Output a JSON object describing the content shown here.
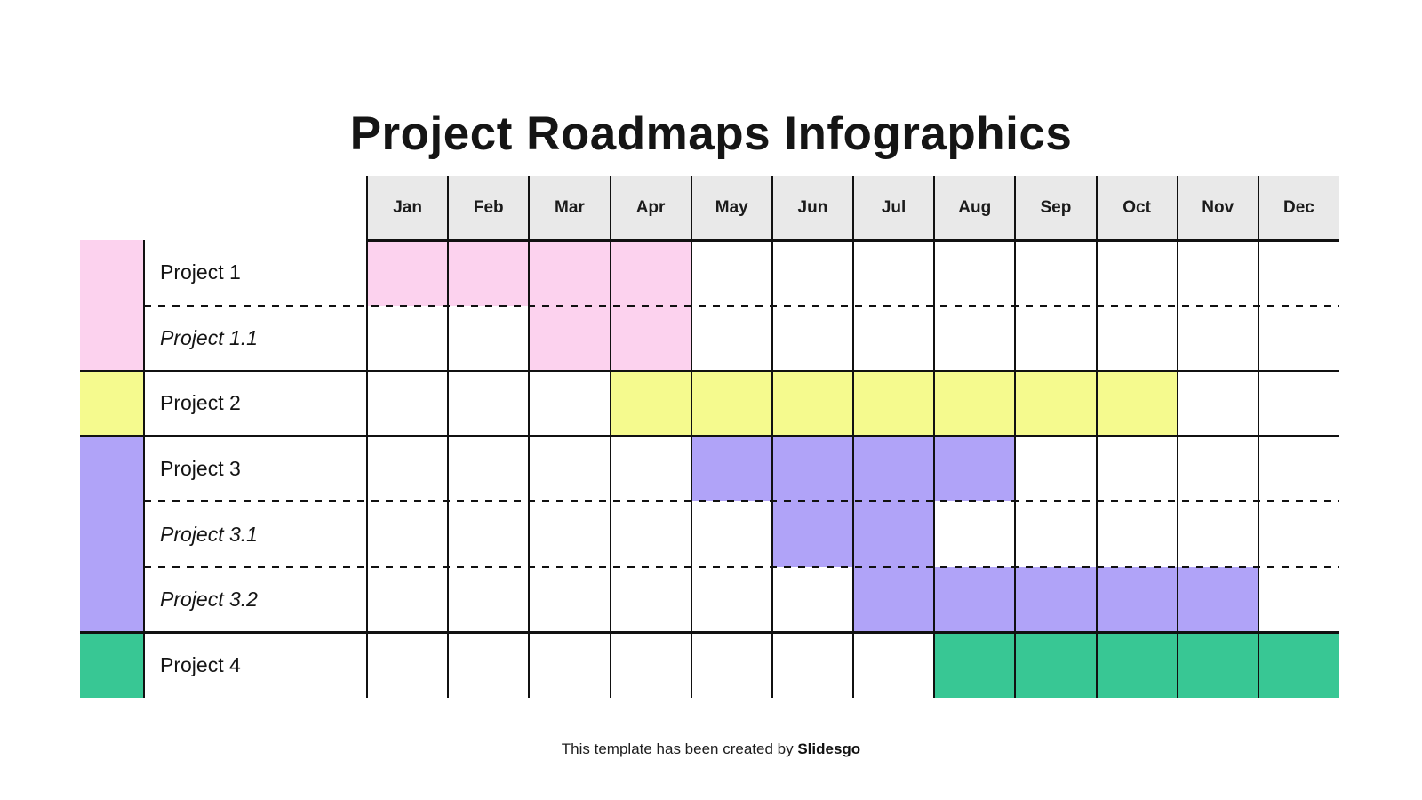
{
  "title": "Project Roadmaps Infographics",
  "months": [
    "Jan",
    "Feb",
    "Mar",
    "Apr",
    "May",
    "Jun",
    "Jul",
    "Aug",
    "Sep",
    "Oct",
    "Nov",
    "Dec"
  ],
  "palette": {
    "pink": "#FCD2EE",
    "yellow": "#F5FA8E",
    "purple": "#B0A3F8",
    "green": "#38C794",
    "header_bg": "#E9E9E9",
    "grid_line": "#111111",
    "page_bg": "#FFFFFF"
  },
  "groups": [
    {
      "color": "pink",
      "rows": [
        {
          "label": "Project 1",
          "italic": false,
          "bar": {
            "start_month": "Jan",
            "end_month": "Apr"
          }
        },
        {
          "label": "Project 1.1",
          "italic": true,
          "bar": {
            "start_month": "Mar",
            "end_month": "Apr"
          }
        }
      ]
    },
    {
      "color": "yellow",
      "rows": [
        {
          "label": "Project 2",
          "italic": false,
          "bar": {
            "start_month": "Apr",
            "end_month": "Oct"
          }
        }
      ]
    },
    {
      "color": "purple",
      "rows": [
        {
          "label": "Project 3",
          "italic": false,
          "bar": {
            "start_month": "May",
            "end_month": "Aug"
          }
        },
        {
          "label": "Project 3.1",
          "italic": true,
          "bar": {
            "start_month": "Jun",
            "end_month": "Jul"
          }
        },
        {
          "label": "Project 3.2",
          "italic": true,
          "bar": {
            "start_month": "Jul",
            "end_month": "Nov"
          }
        }
      ]
    },
    {
      "color": "green",
      "rows": [
        {
          "label": "Project 4",
          "italic": false,
          "bar": {
            "start_month": "Aug",
            "end_month": "Dec"
          }
        }
      ]
    }
  ],
  "footer": {
    "text": "This template has been created by",
    "brand": "Slidesgo"
  },
  "chart_data": {
    "type": "bar",
    "subtype": "gantt",
    "title": "Project Roadmaps Infographics",
    "x_categories": [
      "Jan",
      "Feb",
      "Mar",
      "Apr",
      "May",
      "Jun",
      "Jul",
      "Aug",
      "Sep",
      "Oct",
      "Nov",
      "Dec"
    ],
    "legend": "none",
    "grid": true,
    "tasks": [
      {
        "label": "Project 1",
        "start_month": "Jan",
        "end_month": "Apr",
        "color": "#FCD2EE"
      },
      {
        "label": "Project 1.1",
        "start_month": "Mar",
        "end_month": "Apr",
        "color": "#FCD2EE"
      },
      {
        "label": "Project 2",
        "start_month": "Apr",
        "end_month": "Oct",
        "color": "#F5FA8E"
      },
      {
        "label": "Project 3",
        "start_month": "May",
        "end_month": "Aug",
        "color": "#B0A3F8"
      },
      {
        "label": "Project 3.1",
        "start_month": "Jun",
        "end_month": "Jul",
        "color": "#B0A3F8"
      },
      {
        "label": "Project 3.2",
        "start_month": "Jul",
        "end_month": "Nov",
        "color": "#B0A3F8"
      },
      {
        "label": "Project 4",
        "start_month": "Aug",
        "end_month": "Dec",
        "color": "#38C794"
      }
    ]
  }
}
